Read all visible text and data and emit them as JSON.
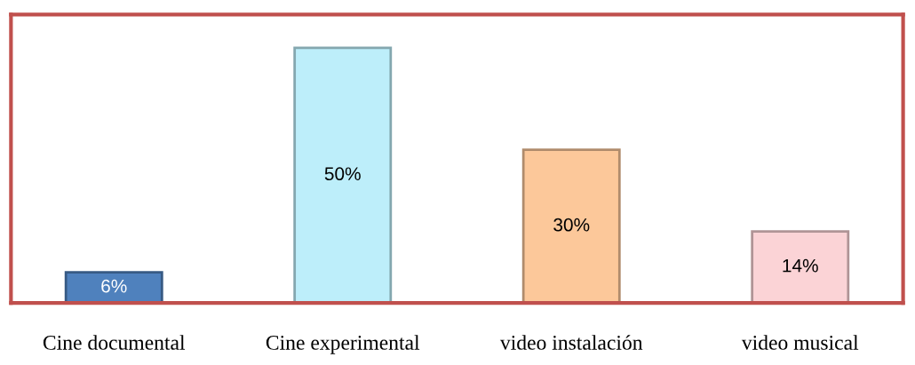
{
  "chart_data": {
    "type": "bar",
    "categories": [
      "Cine documental",
      "Cine experimental",
      "video instalación",
      "video musical"
    ],
    "values": [
      6,
      50,
      30,
      14
    ],
    "colors": [
      "#4f81bd",
      "#bdeefa",
      "#fcc89a",
      "#fbd3d6"
    ],
    "value_labels": [
      "6%",
      "50%",
      "30%",
      "14%"
    ],
    "grid": false,
    "legend": false
  }
}
